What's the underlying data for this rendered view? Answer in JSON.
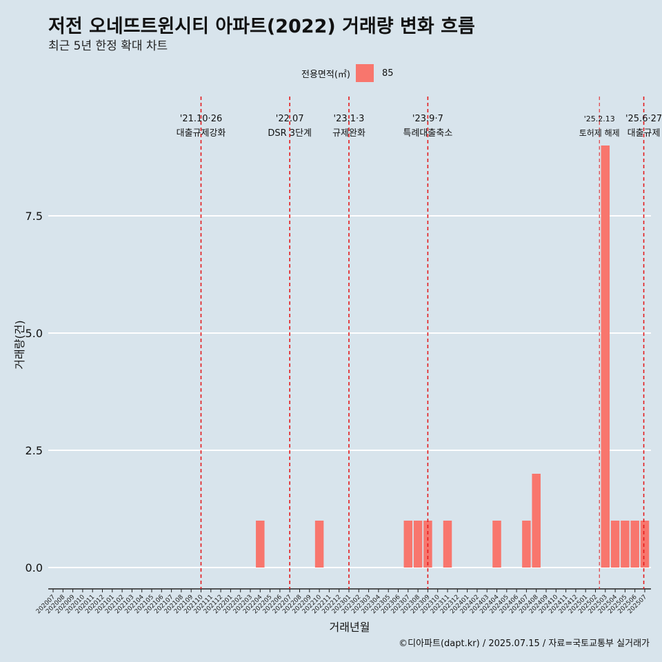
{
  "chart_data": {
    "type": "bar",
    "title": "저전 오네뜨트윈시티 아파트(2022) 거래량 변화 흐름",
    "subtitle": "최근 5년 한정 확대 차트",
    "xlabel": "거래년월",
    "ylabel": "거래량(건)",
    "ylim": [
      -0.45,
      9.6
    ],
    "yticks": [
      "0.0",
      "2.5",
      "5.0",
      "7.5"
    ],
    "ytick_values": [
      0,
      2.5,
      5,
      7.5
    ],
    "legend": {
      "title": "전용면적(㎡)",
      "entries": [
        "85"
      ],
      "placement": "top"
    },
    "grid": "horizontal",
    "categories": [
      "202007",
      "202008",
      "202009",
      "202010",
      "202011",
      "202012",
      "202101",
      "202102",
      "202103",
      "202104",
      "202105",
      "202106",
      "202107",
      "202108",
      "202109",
      "202110",
      "202111",
      "202112",
      "202201",
      "202202",
      "202203",
      "202204",
      "202205",
      "202206",
      "202207",
      "202208",
      "202209",
      "202210",
      "202211",
      "202212",
      "202301",
      "202302",
      "202303",
      "202304",
      "202305",
      "202306",
      "202307",
      "202308",
      "202309",
      "202310",
      "202311",
      "202312",
      "202401",
      "202402",
      "202403",
      "202404",
      "202405",
      "202406",
      "202407",
      "202408",
      "202409",
      "202410",
      "202411",
      "202412",
      "202501",
      "202502",
      "202503",
      "202504",
      "202505",
      "202506",
      "202507"
    ],
    "series": [
      {
        "name": "85",
        "color": "#f8766d",
        "values": [
          0,
          0,
          0,
          0,
          0,
          0,
          0,
          0,
          0,
          0,
          0,
          0,
          0,
          0,
          0,
          0,
          0,
          0,
          0,
          0,
          0,
          1,
          0,
          0,
          0,
          0,
          0,
          1,
          0,
          0,
          0,
          0,
          0,
          0,
          0,
          0,
          1,
          1,
          1,
          0,
          1,
          0,
          0,
          0,
          0,
          1,
          0,
          0,
          1,
          2,
          0,
          0,
          0,
          0,
          0,
          0,
          9,
          1,
          1,
          1,
          1
        ]
      }
    ],
    "annotations": [
      {
        "pos": 15,
        "date": "'21.10·26",
        "label": "대출규제강화"
      },
      {
        "pos": 24,
        "date": "'22.07",
        "label": "DSR 3단계"
      },
      {
        "pos": 30,
        "date": "'23.1·3",
        "label": "규제완화"
      },
      {
        "pos": 38,
        "date": "'23.9·7",
        "label": "특례대출축소"
      },
      {
        "pos": 55.4,
        "date": "'25.2.13",
        "label": "토허제 해제"
      },
      {
        "pos": 59.9,
        "date": "'25.6·27",
        "label": "대출규제"
      }
    ]
  },
  "caption": "©디아파트(dapt.kr) / 2025.07.15 / 자료=국토교통부 실거래가"
}
